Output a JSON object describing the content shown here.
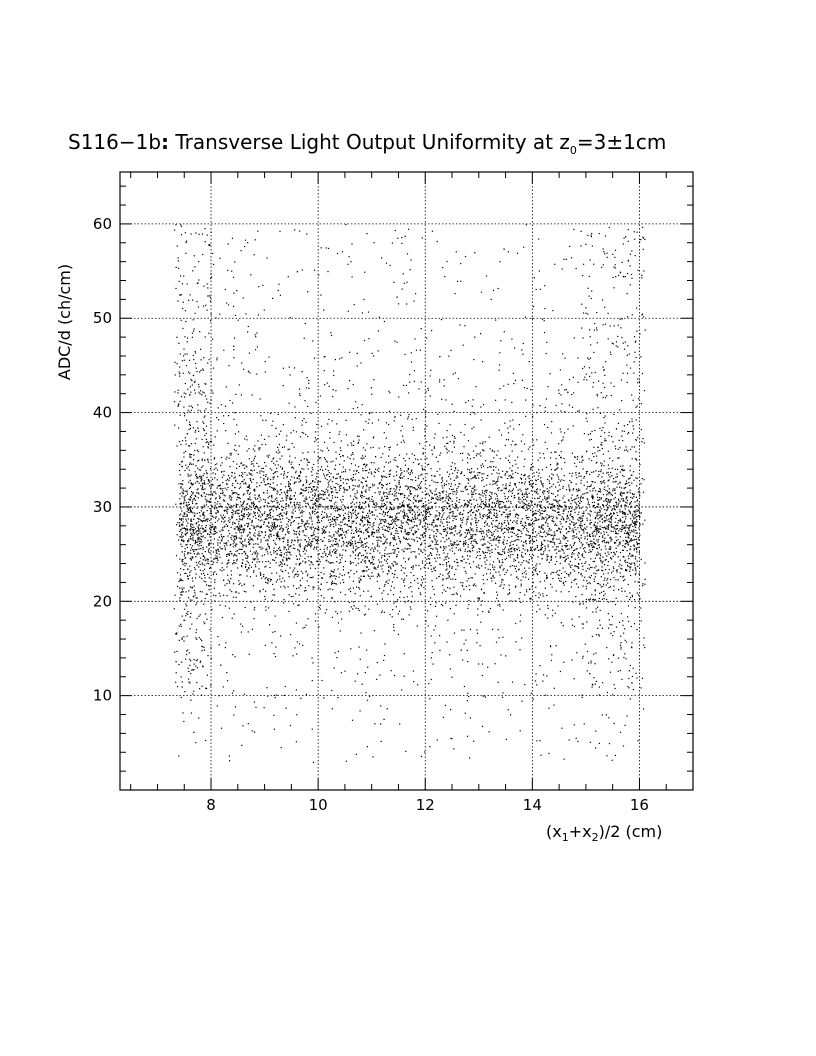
{
  "chart_data": {
    "type": "scatter",
    "title": {
      "main": "S116−1b",
      "colon": ":",
      "rest": " Transverse Light Output Uniformity at z",
      "sub": "0",
      "tail": "=3±1cm"
    },
    "xlabel": {
      "open": "(x",
      "sub1": "1",
      "plus": "+x",
      "sub2": "2",
      "close": ")/2 (cm)"
    },
    "ylabel": "ADC/d (ch/cm)",
    "xlim": [
      6.3,
      17
    ],
    "ylim": [
      0,
      65.5
    ],
    "x_ticks": [
      8,
      10,
      12,
      14,
      16
    ],
    "y_ticks": [
      10,
      20,
      30,
      40,
      50,
      60
    ],
    "x_tick_labels": [
      "8",
      "10",
      "12",
      "14",
      "16"
    ],
    "y_tick_labels": [
      "10",
      "20",
      "30",
      "40",
      "50",
      "60"
    ],
    "grid": true,
    "series": [
      {
        "marker": "dot",
        "color": "#000000",
        "description_points": "dense band centred near ADC/d = 28 across x = 7.4 to 16.0, sparse points from about 3 to 60",
        "x_range": [
          7.3,
          16.1
        ],
        "core_center": 28.5,
        "points": [
          [
            7.45,
            25.3
          ],
          [
            7.52,
            58.1
          ],
          [
            7.6,
            18.4
          ],
          [
            7.66,
            44.0
          ],
          [
            7.74,
            33.2
          ],
          [
            7.81,
            28.6
          ],
          [
            7.9,
            36.9
          ],
          [
            8.05,
            27.2
          ],
          [
            8.17,
            13.3
          ],
          [
            8.3,
            30.4
          ],
          [
            8.41,
            47.1
          ],
          [
            8.55,
            26.7
          ],
          [
            8.68,
            31.8
          ],
          [
            8.8,
            6.2
          ],
          [
            8.94,
            29.3
          ],
          [
            9.07,
            27.9
          ],
          [
            9.2,
            38.4
          ],
          [
            9.34,
            26.4
          ],
          [
            9.47,
            30.9
          ],
          [
            9.6,
            55.0
          ],
          [
            9.73,
            28.1
          ],
          [
            9.86,
            24.8
          ],
          [
            10.0,
            31.3
          ],
          [
            10.13,
            27.4
          ],
          [
            10.27,
            42.5
          ],
          [
            10.4,
            29.8
          ],
          [
            10.53,
            25.9
          ],
          [
            10.66,
            19.6
          ],
          [
            10.8,
            30.1
          ],
          [
            10.93,
            27.0
          ],
          [
            11.06,
            35.4
          ],
          [
            11.2,
            28.7
          ],
          [
            11.33,
            26.2
          ],
          [
            11.46,
            52.3
          ],
          [
            11.6,
            29.5
          ],
          [
            11.73,
            27.6
          ],
          [
            11.86,
            33.1
          ],
          [
            12.0,
            28.3
          ],
          [
            12.13,
            25.6
          ],
          [
            12.26,
            46.0
          ],
          [
            12.4,
            29.9
          ],
          [
            12.53,
            27.1
          ],
          [
            12.66,
            14.9
          ],
          [
            12.8,
            30.6
          ],
          [
            12.93,
            28.4
          ],
          [
            13.06,
            36.1
          ],
          [
            13.2,
            26.8
          ],
          [
            13.33,
            29.2
          ],
          [
            13.46,
            57.4
          ],
          [
            13.6,
            27.7
          ],
          [
            13.73,
            31.5
          ],
          [
            13.86,
            25.1
          ],
          [
            14.0,
            29.6
          ],
          [
            14.13,
            40.8
          ],
          [
            14.26,
            27.3
          ],
          [
            14.4,
            30.2
          ],
          [
            14.53,
            17.8
          ],
          [
            14.66,
            28.9
          ],
          [
            14.8,
            33.7
          ],
          [
            14.93,
            26.1
          ],
          [
            15.06,
            12.4
          ],
          [
            15.2,
            29.4
          ],
          [
            15.33,
            44.6
          ],
          [
            15.46,
            27.5
          ],
          [
            15.6,
            21.3
          ],
          [
            15.73,
            58.7
          ],
          [
            15.86,
            31.0
          ],
          [
            15.98,
            26.6
          ]
        ]
      }
    ]
  }
}
